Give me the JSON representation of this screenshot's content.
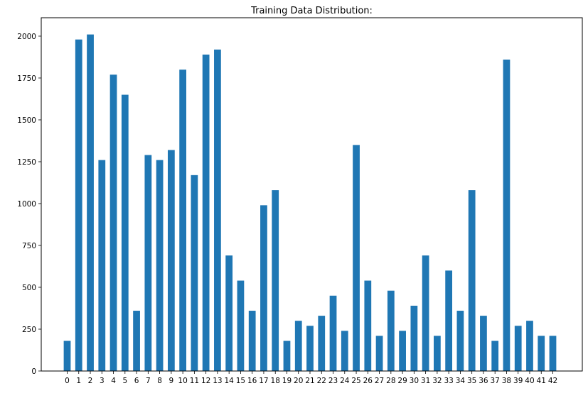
{
  "chart_data": {
    "type": "bar",
    "title": "Training Data Distribution:",
    "xlabel": "",
    "ylabel": "",
    "categories": [
      "0",
      "1",
      "2",
      "3",
      "4",
      "5",
      "6",
      "7",
      "8",
      "9",
      "10",
      "11",
      "12",
      "13",
      "14",
      "15",
      "16",
      "17",
      "18",
      "19",
      "20",
      "21",
      "22",
      "23",
      "24",
      "25",
      "26",
      "27",
      "28",
      "29",
      "30",
      "31",
      "32",
      "33",
      "34",
      "35",
      "36",
      "37",
      "38",
      "39",
      "40",
      "41",
      "42"
    ],
    "values": [
      180,
      1980,
      2010,
      1260,
      1770,
      1650,
      360,
      1290,
      1260,
      1320,
      1800,
      1170,
      1890,
      1920,
      690,
      540,
      360,
      990,
      1080,
      180,
      300,
      270,
      330,
      450,
      240,
      1350,
      540,
      210,
      480,
      240,
      390,
      690,
      210,
      600,
      360,
      1080,
      330,
      180,
      1860,
      270,
      300,
      210,
      210
    ],
    "ylim": [
      0,
      2110
    ],
    "yticks": [
      0,
      250,
      500,
      750,
      1000,
      1250,
      1500,
      1750,
      2000
    ],
    "bar_color": "#1f77b4",
    "grid": false,
    "legend": "none"
  }
}
